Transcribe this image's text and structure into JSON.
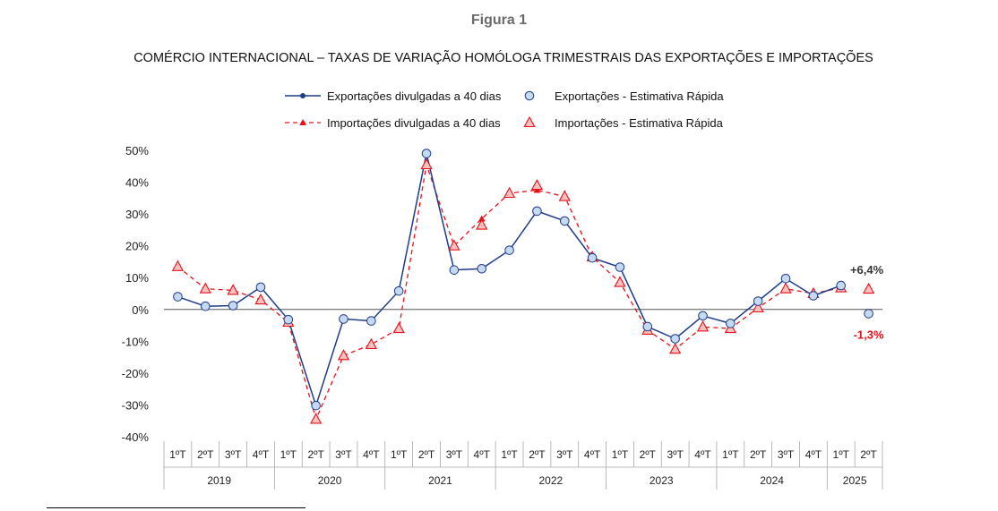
{
  "figure_label": "Figura 1",
  "title": "COMÉRCIO INTERNACIONAL – TAXAS DE VARIAÇÃO HOMÓLOGA TRIMESTRAIS DAS EXPORTAÇÕES E IMPORTAÇÕES",
  "colors": {
    "exports": "#1f3c88",
    "exports_marker_fill": "#c5d9f1",
    "imports": "#e8101a",
    "imports_marker_fill": "#f6c2c0",
    "axis": "#555555",
    "annotation_up": "#333333",
    "annotation_down": "#e8101a"
  },
  "chart_data": {
    "type": "line",
    "title": "COMÉRCIO INTERNACIONAL – TAXAS DE VARIAÇÃO HOMÓLOGA TRIMESTRAIS DAS EXPORTAÇÕES E IMPORTAÇÕES",
    "xlabel": "",
    "ylabel": "",
    "ylim": [
      -40,
      50
    ],
    "yticks": [
      50,
      40,
      30,
      20,
      10,
      0,
      -10,
      -20,
      -30,
      -40
    ],
    "ytick_labels": [
      "50%",
      "40%",
      "30%",
      "20%",
      "10%",
      "0%",
      "-10%",
      "-20%",
      "-30%",
      "-40%"
    ],
    "grid": false,
    "legend_position": "top-center",
    "categories": [
      "1ºT",
      "2ºT",
      "3ºT",
      "4ºT",
      "1ºT",
      "2ºT",
      "3ºT",
      "4ºT",
      "1ºT",
      "2ºT",
      "3ºT",
      "4ºT",
      "1ºT",
      "2ºT",
      "3ºT",
      "4ºT",
      "1ºT",
      "2ºT",
      "3ºT",
      "4ºT",
      "1ºT",
      "2ºT",
      "3ºT",
      "4ºT",
      "1ºT",
      "2ºT"
    ],
    "years": [
      {
        "label": "2019",
        "quarters": 4
      },
      {
        "label": "2020",
        "quarters": 4
      },
      {
        "label": "2021",
        "quarters": 4
      },
      {
        "label": "2022",
        "quarters": 4
      },
      {
        "label": "2023",
        "quarters": 4
      },
      {
        "label": "2024",
        "quarters": 4
      },
      {
        "label": "2025",
        "quarters": 2
      }
    ],
    "series": [
      {
        "name": "Exportações divulgadas a 40 dias",
        "style": "solid-line-dot",
        "values": [
          4.0,
          1.0,
          1.2,
          7.0,
          -3.2,
          -30.2,
          -3.0,
          -3.6,
          5.8,
          49.0,
          12.4,
          12.8,
          18.6,
          30.9,
          27.8,
          16.2,
          13.3,
          -5.4,
          -9.2,
          -2.0,
          -4.4,
          2.6,
          9.7,
          4.3,
          7.5,
          null
        ]
      },
      {
        "name": "Exportações - Estimativa Rápida",
        "style": "circle-marker",
        "values": [
          4.0,
          1.0,
          1.2,
          7.0,
          -3.2,
          -30.2,
          -3.0,
          -3.6,
          5.8,
          49.0,
          12.4,
          12.8,
          18.6,
          30.9,
          27.8,
          16.2,
          13.3,
          -5.4,
          -9.2,
          -2.0,
          -4.4,
          2.6,
          9.7,
          4.3,
          7.5,
          -1.3
        ]
      },
      {
        "name": "Importações divulgadas a 40 dias",
        "style": "dashed-line-triangle",
        "values": [
          13.5,
          6.5,
          6.0,
          3.0,
          -4.0,
          -34.5,
          -14.5,
          -11.0,
          -6.0,
          45.5,
          20.0,
          28.5,
          36.5,
          37.5,
          35.5,
          16.5,
          8.5,
          -6.5,
          -12.5,
          -5.5,
          -6.0,
          0.5,
          6.5,
          5.0,
          6.8,
          null
        ]
      },
      {
        "name": "Importações - Estimativa Rápida",
        "style": "triangle-marker",
        "values": [
          13.5,
          6.5,
          6.0,
          3.0,
          -4.0,
          -34.5,
          -14.5,
          -11.0,
          -6.0,
          45.5,
          20.0,
          26.5,
          36.5,
          39.0,
          35.5,
          16.5,
          8.5,
          -6.5,
          -12.5,
          -5.5,
          -6.0,
          0.5,
          6.5,
          5.0,
          6.8,
          6.4
        ]
      }
    ],
    "annotations": [
      {
        "text": "+6,4%",
        "series": "Importações - Estimativa Rápida",
        "index": 25,
        "color": "annotation_up"
      },
      {
        "text": "-1,3%",
        "series": "Exportações - Estimativa Rápida",
        "index": 25,
        "color": "annotation_down"
      }
    ]
  }
}
